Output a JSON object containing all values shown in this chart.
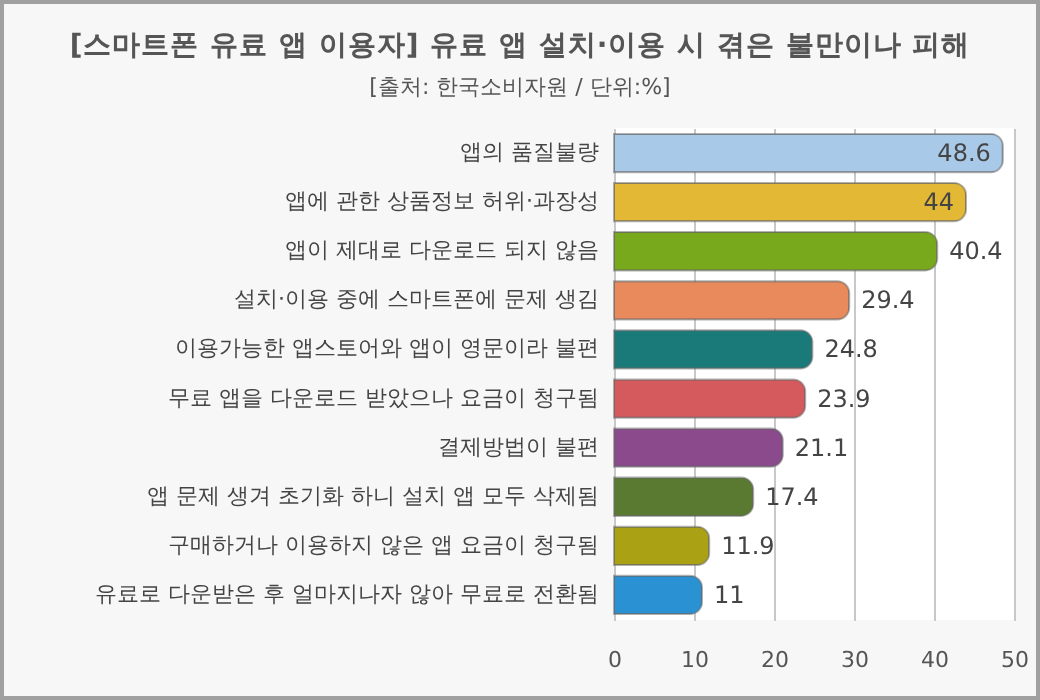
{
  "chart_data": {
    "type": "bar",
    "orientation": "horizontal",
    "title": "[스마트폰 유료 앱 이용자] 유료 앱 설치·이용 시 겪은 불만이나 피해",
    "subtitle": "[출처: 한국소비자원 / 단위:%]",
    "categories": [
      "앱의 품질불량",
      "앱에 관한 상품정보 허위·과장성",
      "앱이 제대로 다운로드 되지 않음",
      "설치·이용 중에 스마트폰에 문제 생김",
      "이용가능한 앱스토어와 앱이 영문이라 불편",
      "무료 앱을 다운로드 받았으나 요금이 청구됨",
      "결제방법이 불편",
      "앱 문제 생겨 초기화 하니 설치 앱 모두 삭제됨",
      "구매하거나 이용하지 않은 앱 요금이 청구됨",
      "유료로 다운받은 후 얼마지나자 않아 무료로 전환됨"
    ],
    "values": [
      48.6,
      44,
      40.4,
      29.4,
      24.8,
      23.9,
      21.1,
      17.4,
      11.9,
      11
    ],
    "colors": [
      "#a9c9e8",
      "#e2b834",
      "#78a81c",
      "#e88a5c",
      "#1a7a7a",
      "#d45a5e",
      "#8a4a8c",
      "#5a7a32",
      "#aaa214",
      "#2a92d2"
    ],
    "xlim": [
      0,
      50
    ],
    "xticks": [
      0,
      10,
      20,
      30,
      40,
      50
    ],
    "grid": "x",
    "data_labels": true
  }
}
